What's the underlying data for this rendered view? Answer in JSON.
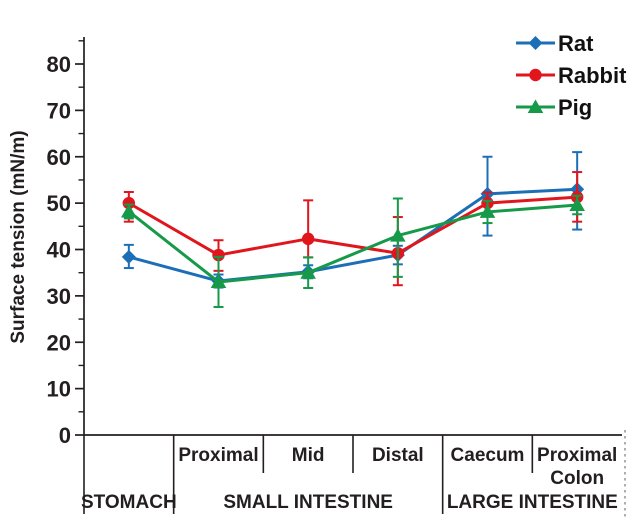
{
  "chart_data": {
    "type": "line",
    "title": "",
    "ylabel": "Surface tension (mN/m)",
    "xlabel": "",
    "ylim": [
      0,
      85
    ],
    "yticks": [
      0,
      10,
      20,
      30,
      40,
      50,
      60,
      70,
      80
    ],
    "grid": false,
    "legend_position": "top-right",
    "categories": [
      "Stomach",
      "Small intestine - Proximal",
      "Small intestine - Mid",
      "Small intestine - Distal",
      "Large intestine - Caecum",
      "Large intestine - Proximal colon"
    ],
    "x_axis": {
      "sublabels": [
        "",
        "Proximal",
        "Mid",
        "Distal",
        "Caecum",
        "Proximal\nColon"
      ],
      "groups": [
        {
          "label": "STOMACH",
          "span": [
            0,
            1
          ]
        },
        {
          "label": "SMALL INTESTINE",
          "span": [
            1,
            4
          ]
        },
        {
          "label": "LARGE INTESTINE",
          "span": [
            4,
            6
          ]
        }
      ]
    },
    "series": [
      {
        "name": "Rat",
        "color": "#1c6fb7",
        "marker": "diamond",
        "values": [
          38.4,
          33.2,
          35.2,
          38.8,
          52,
          53
        ],
        "error_low": [
          36,
          31.8,
          33.8,
          36.8,
          43,
          44.3
        ],
        "error_high": [
          41,
          34.6,
          36.6,
          40.8,
          60,
          61
        ]
      },
      {
        "name": "Rabbit",
        "color": "#e0161c",
        "marker": "circle",
        "values": [
          50,
          38.8,
          42.3,
          39.2,
          50,
          51.3
        ],
        "error_low": [
          46,
          35.4,
          38.3,
          32.3,
          47.7,
          46
        ],
        "error_high": [
          52.4,
          42,
          50.6,
          47,
          52.3,
          56.7
        ]
      },
      {
        "name": "Pig",
        "color": "#169a4a",
        "marker": "triangle",
        "values": [
          48.2,
          33,
          35,
          43,
          48.1,
          49.6
        ],
        "error_low": [
          46.7,
          27.6,
          31.7,
          34.1,
          45.7,
          47.6
        ],
        "error_high": [
          49.7,
          38.4,
          38.3,
          51,
          50.5,
          51.6
        ]
      }
    ],
    "colors": {
      "ink": "#231f20",
      "edge_dash": "#9b9b9b"
    }
  }
}
